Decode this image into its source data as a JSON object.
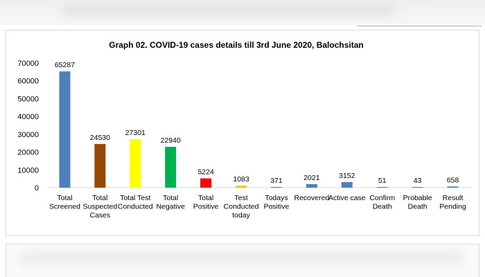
{
  "chart_data": {
    "type": "bar",
    "title": "Graph 02. COVID-19 cases details till 3rd June 2020, Balochsitan",
    "categories": [
      [
        "Total",
        "Screened"
      ],
      [
        "Total",
        "Suspected",
        "Cases"
      ],
      [
        "Total Test",
        "Conducted"
      ],
      [
        "Total",
        "Negative"
      ],
      [
        "Total",
        "Positive"
      ],
      [
        "Test",
        "Conducted",
        "today"
      ],
      [
        "Todays",
        "Positive"
      ],
      [
        "Recovered"
      ],
      [
        "Active case"
      ],
      [
        "Confirm",
        "Death"
      ],
      [
        "Probable",
        "Death"
      ],
      [
        "Result",
        "Pending"
      ]
    ],
    "values": [
      65287,
      24530,
      27301,
      22940,
      5224,
      1083,
      371,
      2021,
      3152,
      51,
      43,
      658
    ],
    "colors": [
      "#4f81bd",
      "#974706",
      "#ffff00",
      "#00b050",
      "#ff0000",
      "#ffc000",
      "#4f81bd",
      "#4f81bd",
      "#4f81bd",
      "#4f81bd",
      "#4f81bd",
      "#4f81bd"
    ],
    "ylim": [
      0,
      70000
    ],
    "yticks": [
      0,
      10000,
      20000,
      30000,
      40000,
      50000,
      60000,
      70000
    ],
    "grid": false,
    "legend": "none",
    "xlabel": "",
    "ylabel": ""
  }
}
